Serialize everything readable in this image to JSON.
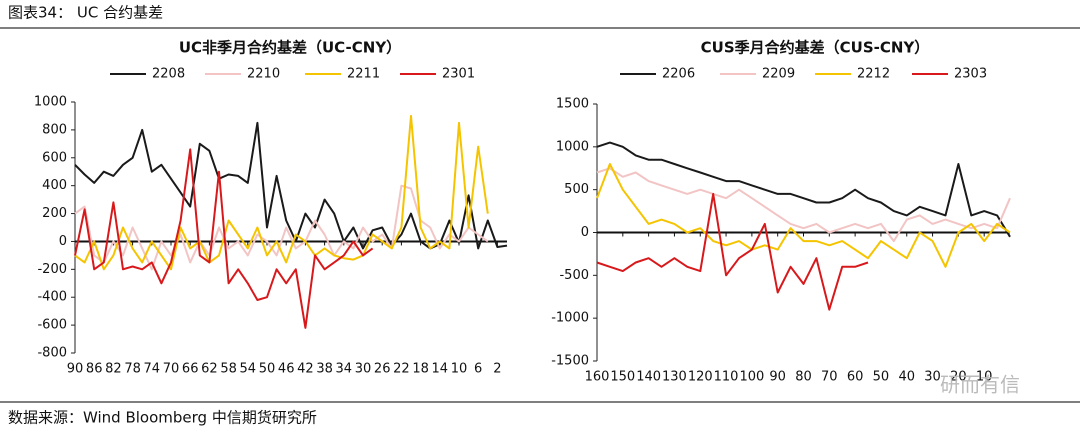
{
  "header": {
    "title": "图表34： UC 合约基差"
  },
  "footer": {
    "source": "数据来源：Wind   Bloomberg   中信期货研究所"
  },
  "watermark": "研而有信",
  "chart_data": [
    {
      "type": "line",
      "title": "UC非季月合约基差（UC-CNY）",
      "x": [
        90,
        88,
        86,
        84,
        82,
        80,
        78,
        76,
        74,
        72,
        70,
        68,
        66,
        64,
        62,
        60,
        58,
        56,
        54,
        52,
        50,
        48,
        46,
        44,
        42,
        40,
        38,
        36,
        34,
        32,
        30,
        28,
        26,
        24,
        22,
        20,
        18,
        16,
        14,
        12,
        10,
        8,
        6,
        4,
        2,
        0
      ],
      "xlim": [
        90,
        0
      ],
      "xticks": [
        90,
        86,
        82,
        78,
        74,
        70,
        66,
        62,
        58,
        54,
        50,
        46,
        42,
        38,
        34,
        30,
        26,
        22,
        18,
        14,
        10,
        6,
        2
      ],
      "ylim": [
        -800,
        1000
      ],
      "yticks": [
        -800,
        -600,
        -400,
        -200,
        0,
        200,
        400,
        600,
        800,
        1000
      ],
      "series": [
        {
          "name": "2208",
          "color": "#1a1a1a",
          "values": [
            550,
            480,
            420,
            500,
            470,
            550,
            600,
            800,
            500,
            550,
            450,
            350,
            250,
            700,
            650,
            450,
            480,
            470,
            420,
            850,
            100,
            470,
            150,
            0,
            200,
            100,
            300,
            200,
            0,
            100,
            -50,
            80,
            100,
            -30,
            50,
            200,
            0,
            -50,
            -20,
            150,
            -10,
            330,
            -50,
            150,
            -40,
            -30
          ]
        },
        {
          "name": "2210",
          "color": "#f2c4c4",
          "values": [
            200,
            250,
            -100,
            -150,
            0,
            -100,
            100,
            -50,
            -200,
            0,
            -100,
            50,
            -150,
            0,
            -100,
            100,
            -50,
            0,
            -100,
            50,
            0,
            -100,
            100,
            -50,
            0,
            150,
            50,
            -100,
            0,
            -50,
            100,
            0,
            50,
            -50,
            400,
            380,
            150,
            100,
            -50,
            50,
            0,
            100,
            50,
            0,
            null,
            null
          ]
        },
        {
          "name": "2211",
          "color": "#f5c400",
          "values": [
            -100,
            -150,
            0,
            -200,
            -100,
            100,
            -50,
            -150,
            0,
            -100,
            -200,
            100,
            -50,
            0,
            -150,
            -100,
            150,
            50,
            -50,
            100,
            -100,
            0,
            -150,
            50,
            0,
            -100,
            -50,
            -100,
            -120,
            -130,
            -100,
            50,
            0,
            -50,
            100,
            900,
            100,
            -50,
            0,
            -50,
            850,
            100,
            680,
            200,
            null,
            null
          ]
        },
        {
          "name": "2301",
          "color": "#d7191c",
          "values": [
            -100,
            230,
            -200,
            -150,
            280,
            -200,
            -180,
            -200,
            -150,
            -300,
            -150,
            150,
            660,
            -100,
            -150,
            500,
            -300,
            -200,
            -300,
            -420,
            -400,
            -200,
            -300,
            -200,
            -620,
            -100,
            -200,
            -150,
            -100,
            0,
            -100,
            -50,
            null,
            null,
            null,
            null,
            null,
            null,
            null,
            null,
            null,
            null,
            null,
            null,
            null,
            null
          ]
        }
      ]
    },
    {
      "type": "line",
      "title": "CUS季月合约基差（CUS-CNY）",
      "x": [
        160,
        155,
        150,
        145,
        140,
        135,
        130,
        125,
        120,
        115,
        110,
        105,
        100,
        95,
        90,
        85,
        80,
        75,
        70,
        65,
        60,
        55,
        50,
        45,
        40,
        35,
        30,
        25,
        20,
        15,
        10,
        5,
        0
      ],
      "xlim": [
        160,
        0
      ],
      "xticks": [
        160,
        150,
        140,
        130,
        120,
        110,
        100,
        90,
        80,
        70,
        60,
        50,
        40,
        30,
        20,
        10
      ],
      "ylim": [
        -1500,
        1500
      ],
      "yticks": [
        -1500,
        -1000,
        -500,
        0,
        500,
        1000,
        1500
      ],
      "series": [
        {
          "name": "2206",
          "color": "#1a1a1a",
          "values": [
            1000,
            1050,
            1000,
            900,
            850,
            850,
            800,
            750,
            700,
            650,
            600,
            600,
            550,
            500,
            450,
            450,
            400,
            350,
            350,
            400,
            500,
            400,
            350,
            250,
            200,
            300,
            250,
            200,
            800,
            200,
            250,
            200,
            -50
          ]
        },
        {
          "name": "2209",
          "color": "#f2c4c4",
          "values": [
            700,
            750,
            650,
            700,
            600,
            550,
            500,
            450,
            500,
            450,
            400,
            500,
            400,
            300,
            200,
            100,
            50,
            100,
            0,
            50,
            100,
            50,
            100,
            -100,
            150,
            200,
            100,
            150,
            100,
            50,
            100,
            50,
            400
          ]
        },
        {
          "name": "2212",
          "color": "#f5c400",
          "values": [
            400,
            800,
            500,
            300,
            100,
            150,
            100,
            0,
            50,
            -100,
            -150,
            -100,
            -200,
            -150,
            -200,
            50,
            -100,
            -100,
            -150,
            -100,
            -200,
            -300,
            -100,
            -200,
            -300,
            0,
            -100,
            -400,
            0,
            100,
            -100,
            100,
            0
          ]
        },
        {
          "name": "2303",
          "color": "#d7191c",
          "values": [
            -350,
            -400,
            -450,
            -350,
            -300,
            -400,
            -300,
            -400,
            -450,
            450,
            -500,
            -300,
            -200,
            100,
            -700,
            -400,
            -600,
            -300,
            -900,
            -400,
            -400,
            -350,
            null,
            null,
            null,
            null,
            null,
            null,
            null,
            null,
            null,
            null,
            null
          ]
        }
      ]
    }
  ]
}
